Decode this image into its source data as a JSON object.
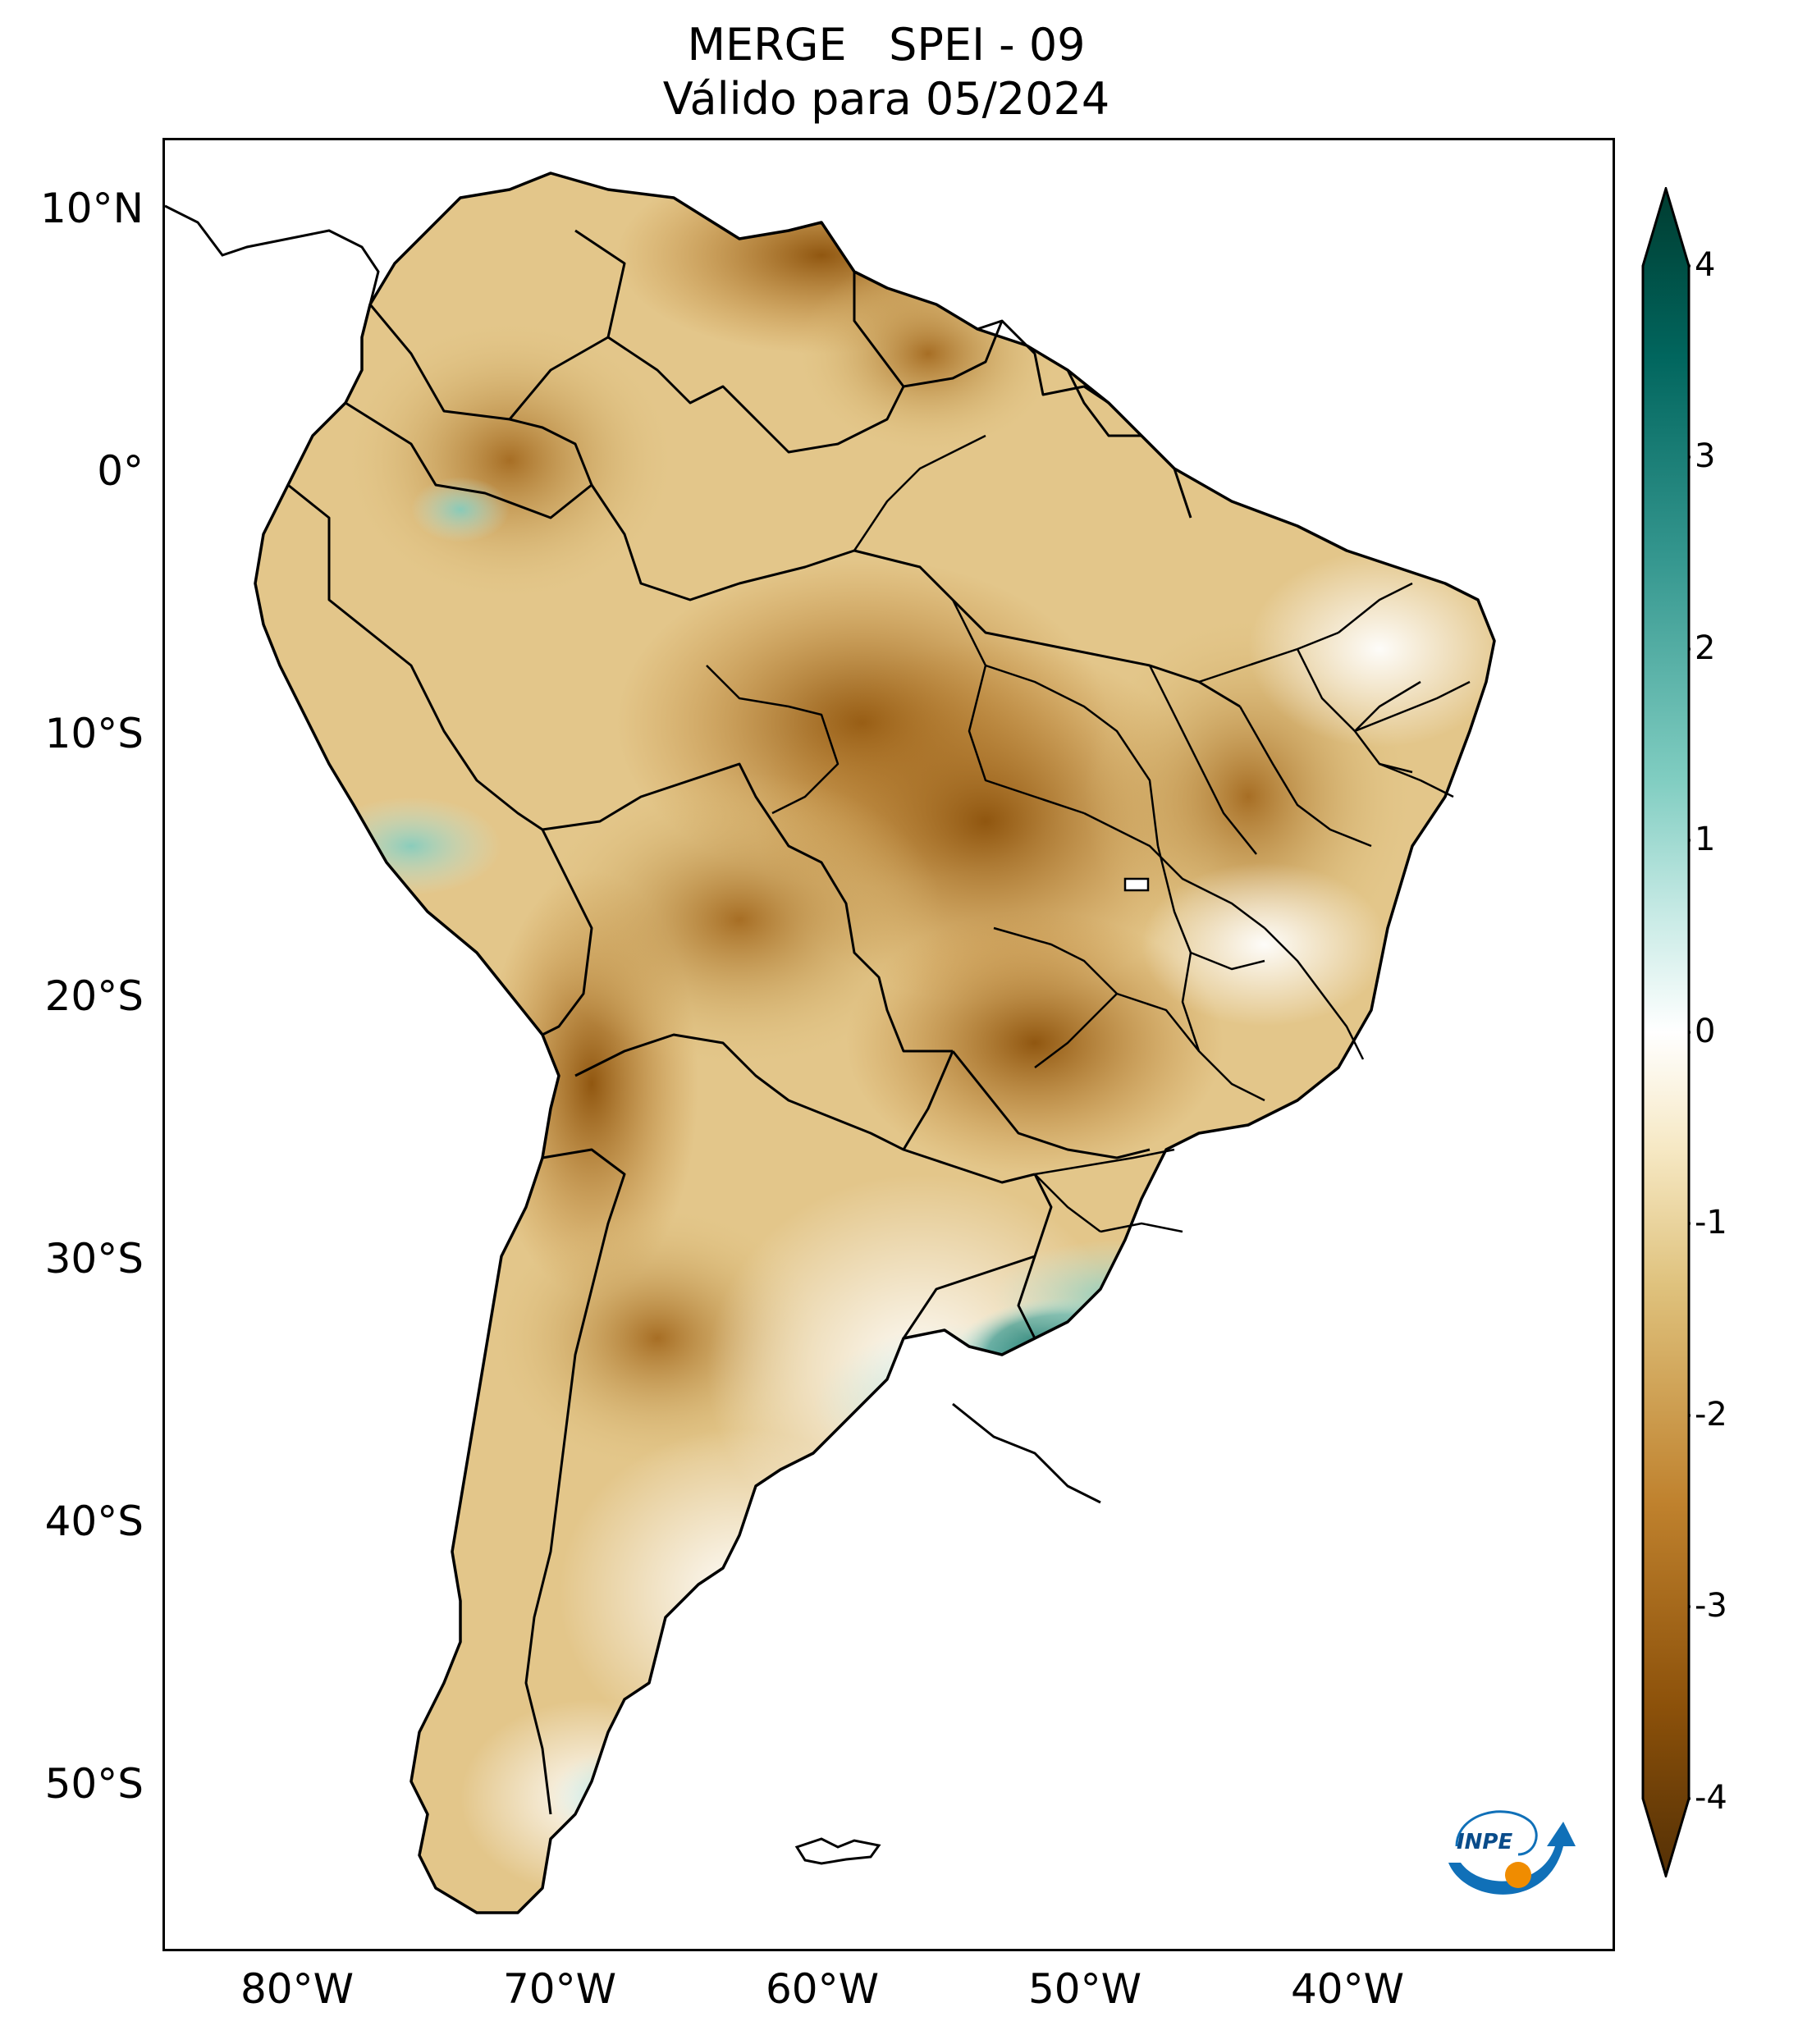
{
  "title": {
    "line1": "MERGE   SPEI - 09",
    "line2": "Válido para 05/2024"
  },
  "lat_labels": [
    "10°N",
    "0°",
    "10°S",
    "20°S",
    "30°S",
    "40°S",
    "50°S"
  ],
  "lon_labels": [
    "80°W",
    "70°W",
    "60°W",
    "50°W",
    "40°W"
  ],
  "colorbar": {
    "ticks": [
      "4",
      "3",
      "2",
      "1",
      "0",
      "-1",
      "-2",
      "-3",
      "-4"
    ],
    "min": -4,
    "max": 4,
    "extend": "both",
    "colors": [
      "#543005",
      "#8c510a",
      "#bf812d",
      "#dfc27d",
      "#f6e8c3",
      "#ffffff",
      "#c7eae5",
      "#80cdc1",
      "#35978f",
      "#01665e",
      "#003c30"
    ]
  },
  "map": {
    "lon_range": [
      -85,
      -30
    ],
    "lat_range": [
      -56,
      13
    ],
    "projection": "PlateCarree",
    "dry_color": "#a8681f",
    "wet_color": "#0f7a70"
  },
  "logo": {
    "text": "INPE",
    "accent_color": "#f08c00",
    "primary_color": "#1070b8"
  }
}
